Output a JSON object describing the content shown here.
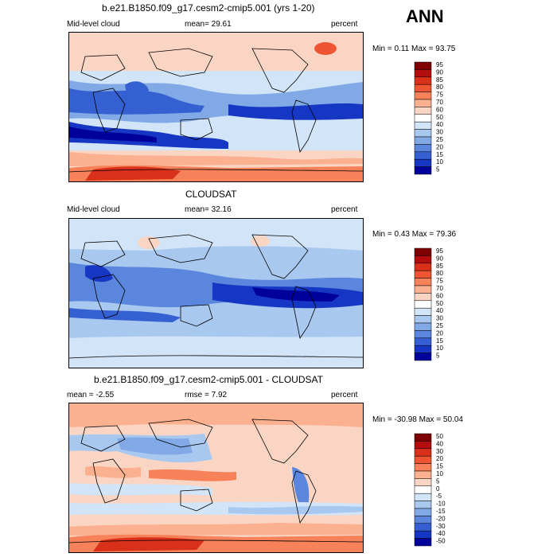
{
  "season": "ANN",
  "panels": [
    {
      "title": "b.e21.B1850.f09_g17.cesm2-cmip5.001 (yrs 1-20)",
      "left_label": "Mid-level cloud",
      "center_label": "mean=  29.61",
      "right_label": "percent",
      "minmax": "Min =   0.11 Max =  93.75",
      "levels": [
        "95",
        "90",
        "85",
        "80",
        "75",
        "70",
        "60",
        "50",
        "40",
        "30",
        "25",
        "20",
        "15",
        "10",
        "5"
      ],
      "colors": [
        "#7f0000",
        "#b30d0d",
        "#d9301a",
        "#ee5533",
        "#f7825a",
        "#fbb08f",
        "#fbd5c4",
        "#ffffff",
        "#d2e4f7",
        "#a9c8ef",
        "#80a9e6",
        "#5a86dd",
        "#3460d2",
        "#1537c4",
        "#00009a"
      ]
    },
    {
      "title": "CLOUDSAT",
      "left_label": "Mid-level cloud",
      "center_label": "mean=  32.16",
      "right_label": "percent",
      "minmax": "Min =   0.43 Max =  79.36",
      "levels": [
        "95",
        "90",
        "85",
        "80",
        "75",
        "70",
        "60",
        "50",
        "40",
        "30",
        "25",
        "20",
        "15",
        "10",
        "5"
      ],
      "colors": [
        "#7f0000",
        "#b30d0d",
        "#d9301a",
        "#ee5533",
        "#f7825a",
        "#fbb08f",
        "#fbd5c4",
        "#ffffff",
        "#d2e4f7",
        "#a9c8ef",
        "#80a9e6",
        "#5a86dd",
        "#3460d2",
        "#1537c4",
        "#00009a"
      ]
    },
    {
      "title": "b.e21.B1850.f09_g17.cesm2-cmip5.001 - CLOUDSAT",
      "left_label": "mean =  -2.55",
      "center_label": "rmse =   7.92",
      "right_label": "percent",
      "minmax": "Min = -30.98 Max =  50.04",
      "levels": [
        "50",
        "40",
        "30",
        "20",
        "15",
        "10",
        "5",
        "0",
        "-5",
        "-10",
        "-15",
        "-20",
        "-30",
        "-40",
        "-50"
      ],
      "colors": [
        "#7f0000",
        "#b30d0d",
        "#d9301a",
        "#ee5533",
        "#f7825a",
        "#fbb08f",
        "#fbd5c4",
        "#ffffff",
        "#d2e4f7",
        "#a9c8ef",
        "#80a9e6",
        "#5a86dd",
        "#3460d2",
        "#1537c4",
        "#00009a"
      ]
    }
  ]
}
